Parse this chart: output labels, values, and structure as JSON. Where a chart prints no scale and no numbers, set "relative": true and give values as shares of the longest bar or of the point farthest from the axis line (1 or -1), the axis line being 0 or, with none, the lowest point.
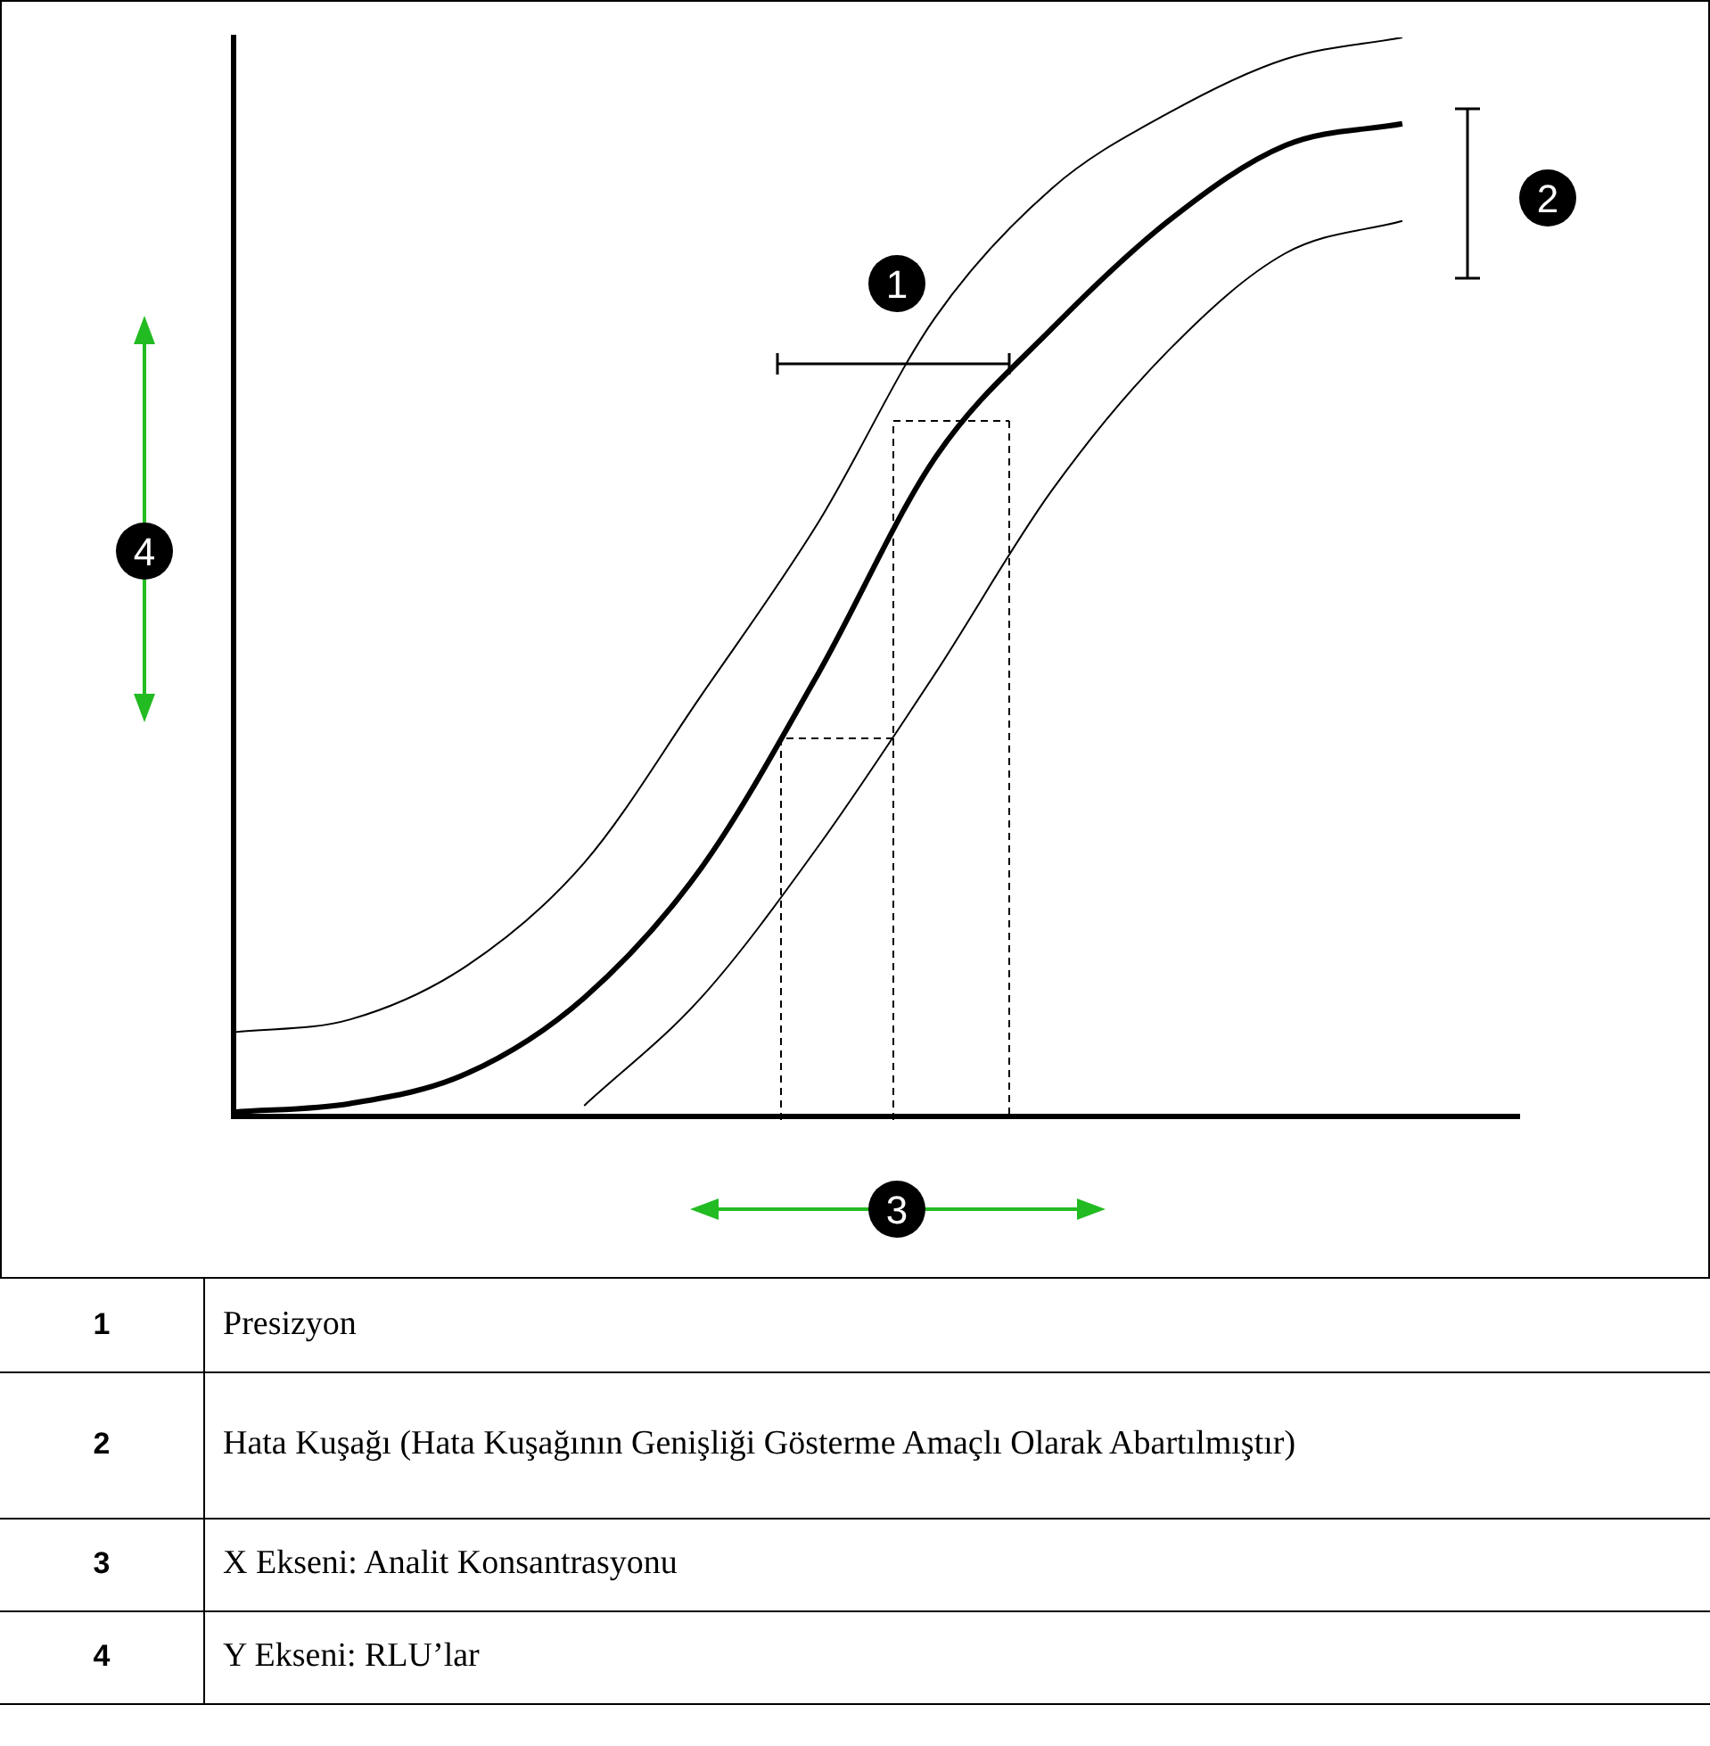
{
  "chart_data": {
    "type": "line",
    "relative": true,
    "categories": [
      null,
      null,
      null,
      null,
      null,
      null,
      null,
      null,
      null,
      null,
      null,
      null
    ],
    "series": [
      {
        "color": "#000000",
        "values": [
          0.004,
          0.012,
          0.04,
          0.11,
          0.23,
          0.41,
          0.61,
          0.73,
          0.83,
          0.9,
          0.92,
          null
        ]
      },
      {
        "color": "#000000",
        "values": [
          0.078,
          0.09,
          0.14,
          0.235,
          0.39,
          0.55,
          0.74,
          0.86,
          0.93,
          0.98,
          1.0,
          null
        ]
      },
      {
        "color": "#000000",
        "values": [
          null,
          null,
          null,
          0.01,
          0.11,
          0.25,
          0.41,
          0.58,
          0.71,
          0.8,
          0.83,
          null
        ]
      }
    ],
    "legend": false,
    "grid": false,
    "marker": "none",
    "line_style": "solid",
    "annotations": [
      "1",
      "2",
      "3",
      "4",
      "Presizyon",
      "Hata Kuşağı (Hata Kuşağının Genişliği Gösterme Amaçlı Olarak Abartılmıştır)",
      "X Ekseni: Analit Konsantrasyonu",
      "Y Ekseni: RLU’lar"
    ]
  }
}
